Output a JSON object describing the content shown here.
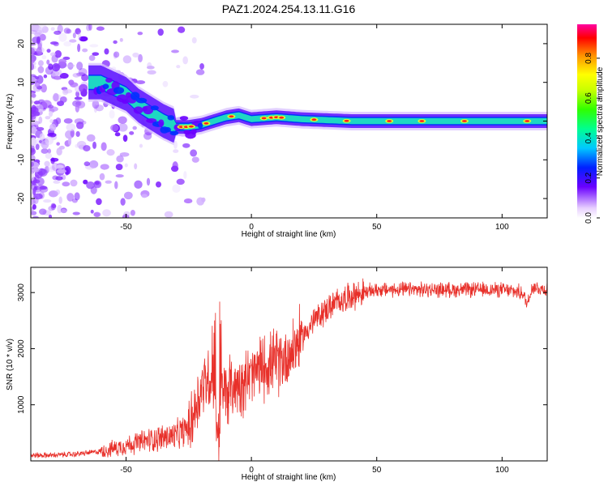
{
  "title": "PAZ1.2024.254.13.11.G16",
  "chart_data": [
    {
      "type": "heatmap",
      "xlabel": "Height of straight line (km)",
      "ylabel": "Frequency (Hz)",
      "xlim": [
        -88,
        118
      ],
      "ylim": [
        -25,
        25
      ],
      "xticks": [
        -50,
        0,
        50,
        100
      ],
      "yticks": [
        -20,
        -10,
        0,
        10,
        20
      ],
      "colorbar": {
        "label": "Normalized spectral amplitude",
        "range": [
          0.0,
          0.97
        ],
        "ticks": [
          0.0,
          0.2,
          0.4,
          0.6,
          0.8
        ]
      },
      "ridge": [
        {
          "x": -60,
          "y": 10
        },
        {
          "x": -50,
          "y": 7
        },
        {
          "x": -45,
          "y": 4
        },
        {
          "x": -40,
          "y": 2
        },
        {
          "x": -35,
          "y": 0
        },
        {
          "x": -30,
          "y": -1.5
        },
        {
          "x": -25,
          "y": -1.5
        },
        {
          "x": -20,
          "y": -1
        },
        {
          "x": -15,
          "y": 0
        },
        {
          "x": -10,
          "y": 1
        },
        {
          "x": -5,
          "y": 1.5
        },
        {
          "x": 0,
          "y": 0.5
        },
        {
          "x": 10,
          "y": 1
        },
        {
          "x": 20,
          "y": 0.5
        },
        {
          "x": 40,
          "y": 0
        },
        {
          "x": 60,
          "y": 0
        },
        {
          "x": 80,
          "y": 0
        },
        {
          "x": 100,
          "y": 0
        },
        {
          "x": 118,
          "y": 0
        }
      ]
    },
    {
      "type": "line",
      "xlabel": "Height of straight line (km)",
      "ylabel": "SNR (10 * v/v)",
      "xlim": [
        -88,
        118
      ],
      "ylim": [
        0,
        3450
      ],
      "xticks": [
        -50,
        0,
        50,
        100
      ],
      "yticks": [
        1000,
        2000,
        3000
      ],
      "color": "#e8302a",
      "series": [
        {
          "x": [
            -88,
            -80,
            -70,
            -60,
            -55,
            -50,
            -45,
            -40,
            -35,
            -30,
            -25,
            -22,
            -20,
            -17,
            -15,
            -14,
            -13,
            -12,
            -10,
            -5,
            0,
            5,
            10,
            15,
            20,
            25,
            30,
            35,
            40,
            50,
            60,
            70,
            80,
            90,
            100,
            108,
            110,
            112,
            118
          ],
          "y": [
            100,
            100,
            120,
            170,
            220,
            280,
            330,
            380,
            420,
            440,
            600,
            1000,
            1300,
            1500,
            1400,
            800,
            300,
            1200,
            1250,
            1400,
            1500,
            1700,
            1750,
            1900,
            2200,
            2500,
            2700,
            2850,
            2950,
            3050,
            3050,
            3050,
            3050,
            3050,
            3050,
            3000,
            2800,
            3100,
            3050
          ]
        }
      ]
    }
  ]
}
